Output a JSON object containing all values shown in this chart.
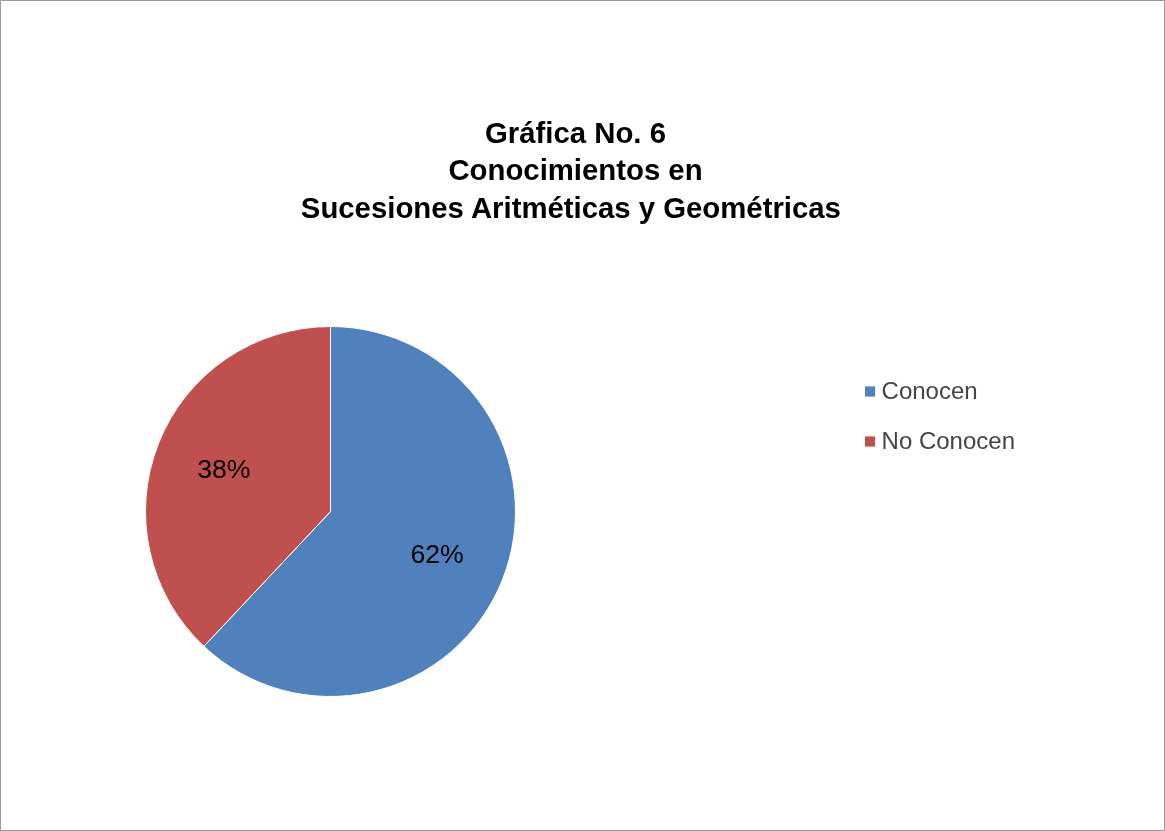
{
  "chart_data": {
    "type": "pie",
    "title": "Gráfica No. 6\nConocimientos en\nSucesiones Aritméticas y  Geométricas",
    "categories": [
      "Conocen",
      "No Conocen"
    ],
    "values": [
      62,
      38
    ],
    "colors": [
      "#4f81bd",
      "#c0504d"
    ],
    "value_labels": [
      "62%",
      "38%"
    ],
    "legend": "right"
  }
}
